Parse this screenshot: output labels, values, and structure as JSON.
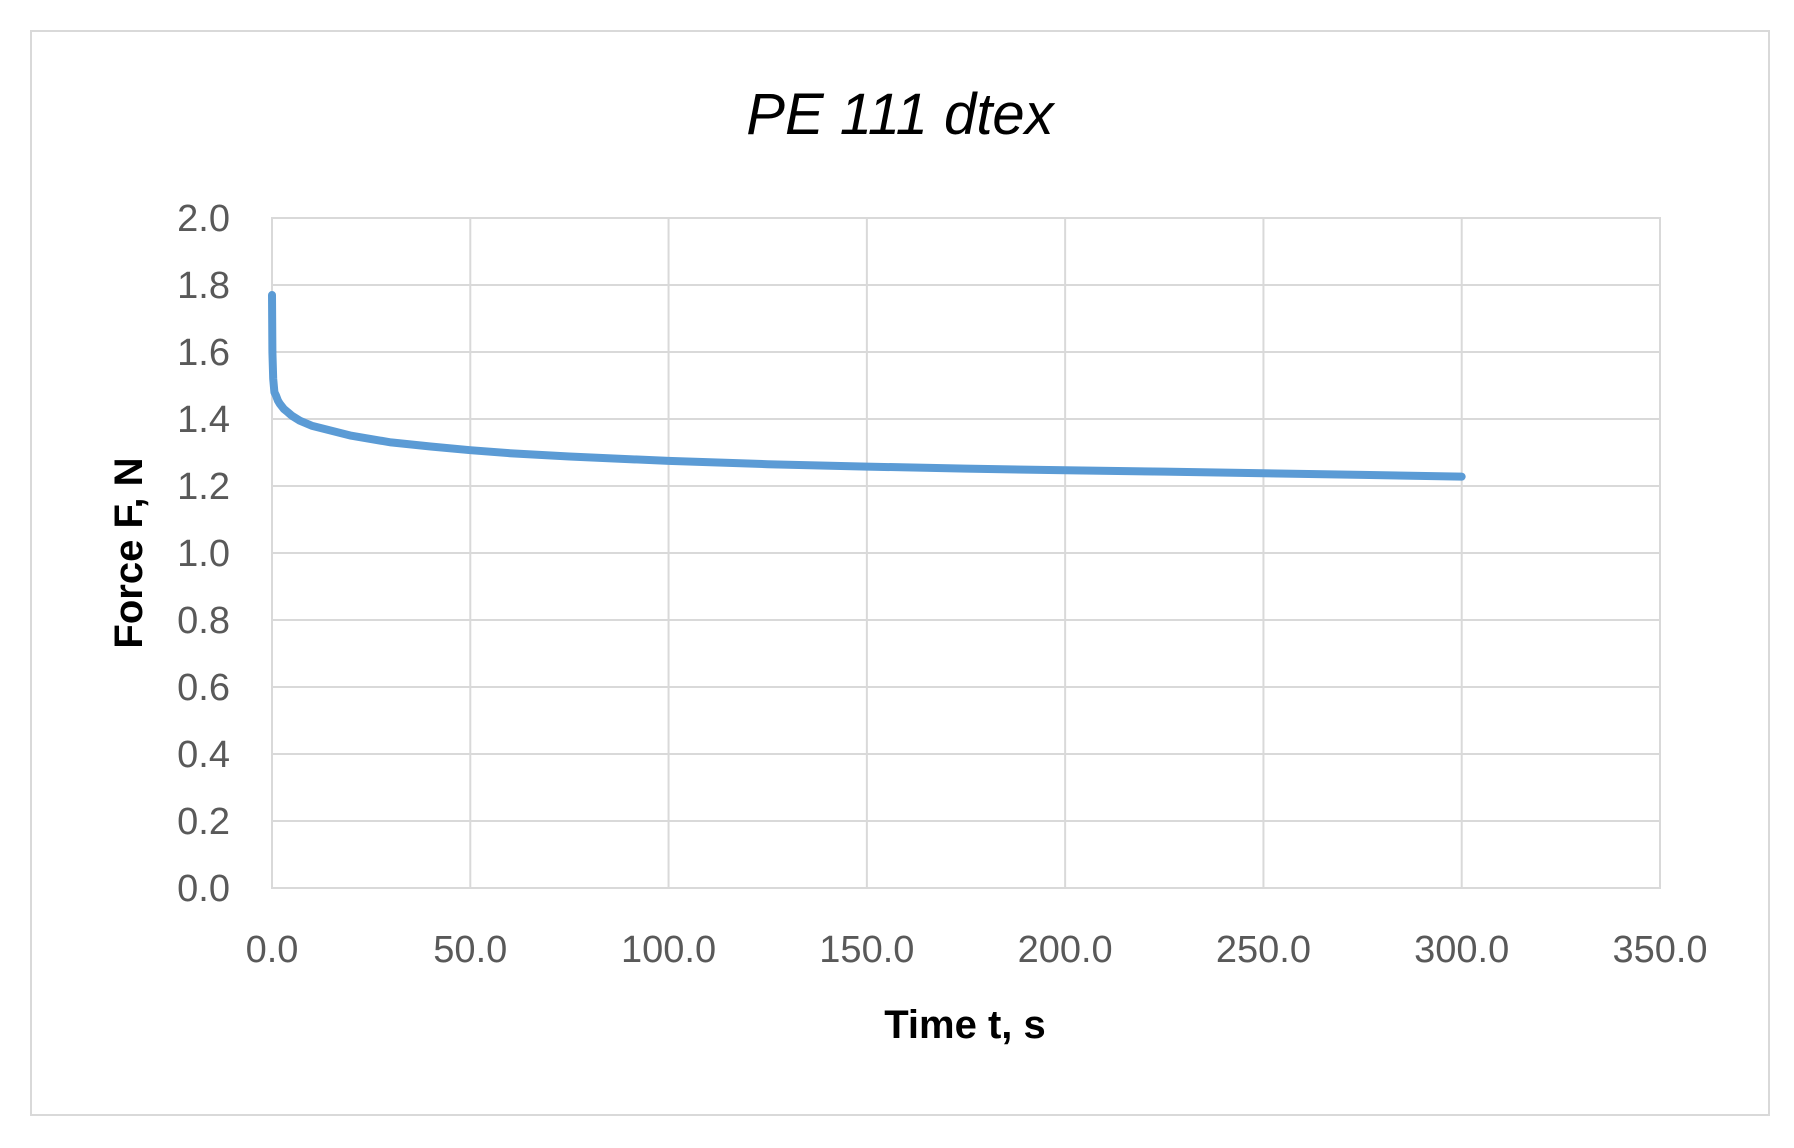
{
  "chart_data": {
    "type": "line",
    "title": "PE 111 dtex",
    "xlabel": "Time t, s",
    "ylabel": "Force F, N",
    "xlim": [
      0,
      350
    ],
    "ylim": [
      0,
      2.0
    ],
    "x_ticks": [
      0,
      50,
      100,
      150,
      200,
      250,
      300,
      350
    ],
    "y_ticks": [
      0,
      0.2,
      0.4,
      0.6,
      0.8,
      1.0,
      1.2,
      1.4,
      1.6,
      1.8,
      2.0
    ],
    "x_tick_labels": [
      "0.0",
      "50.0",
      "100.0",
      "150.0",
      "200.0",
      "250.0",
      "300.0",
      "350.0"
    ],
    "y_tick_labels": [
      "0.0",
      "0.2",
      "0.4",
      "0.6",
      "0.8",
      "1.0",
      "1.2",
      "1.4",
      "1.6",
      "1.8",
      "2.0"
    ],
    "grid": true,
    "legend": "none",
    "series": [
      {
        "color": "#5b9bd5",
        "x": [
          0,
          0.1,
          0.3,
          0.6,
          1,
          1.5,
          2,
          3,
          4,
          5,
          7,
          10,
          15,
          20,
          30,
          40,
          50,
          60,
          75,
          100,
          125,
          150,
          175,
          200,
          225,
          250,
          275,
          300
        ],
        "y": [
          1.77,
          1.6,
          1.52,
          1.48,
          1.47,
          1.455,
          1.445,
          1.43,
          1.42,
          1.41,
          1.395,
          1.38,
          1.365,
          1.35,
          1.33,
          1.318,
          1.307,
          1.298,
          1.288,
          1.275,
          1.265,
          1.258,
          1.252,
          1.247,
          1.243,
          1.238,
          1.233,
          1.228
        ]
      }
    ]
  }
}
